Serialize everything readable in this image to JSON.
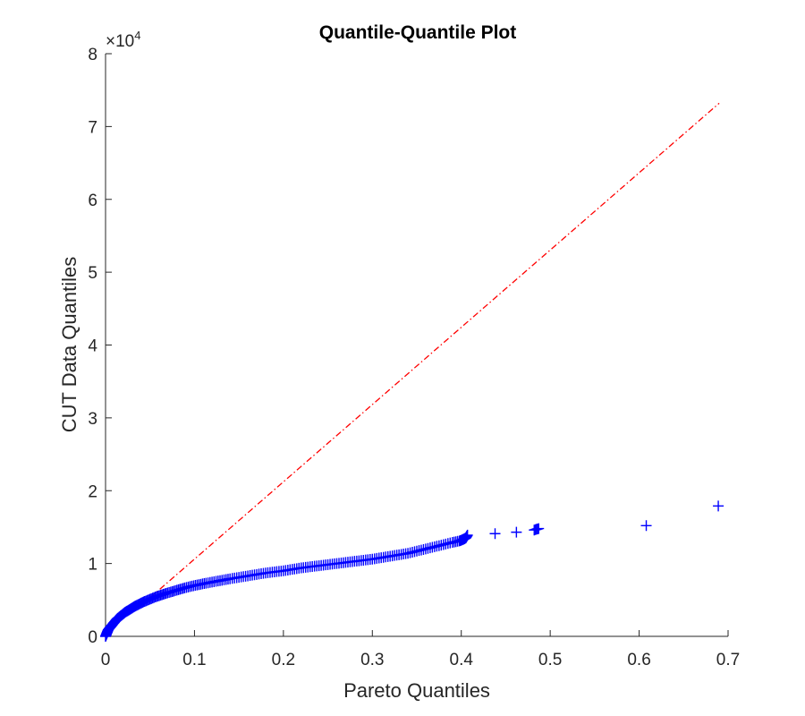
{
  "chart_data": {
    "type": "scatter",
    "title": "Quantile-Quantile Plot",
    "xlabel": "Pareto Quantiles",
    "ylabel": "CUT Data Quantiles",
    "xlim": [
      0,
      0.7
    ],
    "ylim": [
      0,
      80000
    ],
    "xticks": [
      0,
      0.1,
      0.2,
      0.3,
      0.4,
      0.5,
      0.6,
      0.7
    ],
    "xtick_labels": [
      "0",
      "0.1",
      "0.2",
      "0.3",
      "0.4",
      "0.5",
      "0.6",
      "0.7"
    ],
    "yticks": [
      0,
      10000,
      20000,
      30000,
      40000,
      50000,
      60000,
      70000,
      80000
    ],
    "ytick_labels": [
      "0",
      "1",
      "2",
      "3",
      "4",
      "5",
      "6",
      "7",
      "8"
    ],
    "y_exponent_label": "×10",
    "y_exponent_power": "4",
    "grid": false,
    "series": [
      {
        "marker": "+",
        "color": "#0000ff",
        "points": [
          [
            0.0,
            0
          ],
          [
            0.001,
            300
          ],
          [
            0.002,
            600
          ],
          [
            0.003,
            900
          ],
          [
            0.005,
            1200
          ],
          [
            0.007,
            1500
          ],
          [
            0.009,
            1800
          ],
          [
            0.011,
            2100
          ],
          [
            0.013,
            2400
          ],
          [
            0.016,
            2700
          ],
          [
            0.019,
            3000
          ],
          [
            0.022,
            3300
          ],
          [
            0.026,
            3600
          ],
          [
            0.03,
            3900
          ],
          [
            0.034,
            4200
          ],
          [
            0.039,
            4500
          ],
          [
            0.044,
            4800
          ],
          [
            0.05,
            5100
          ],
          [
            0.056,
            5400
          ],
          [
            0.062,
            5650
          ],
          [
            0.068,
            5900
          ],
          [
            0.075,
            6150
          ],
          [
            0.082,
            6400
          ],
          [
            0.089,
            6650
          ],
          [
            0.097,
            6900
          ],
          [
            0.105,
            7100
          ],
          [
            0.113,
            7300
          ],
          [
            0.122,
            7500
          ],
          [
            0.131,
            7700
          ],
          [
            0.14,
            7900
          ],
          [
            0.15,
            8100
          ],
          [
            0.16,
            8300
          ],
          [
            0.17,
            8500
          ],
          [
            0.18,
            8700
          ],
          [
            0.19,
            8850
          ],
          [
            0.2,
            9000
          ],
          [
            0.21,
            9200
          ],
          [
            0.22,
            9400
          ],
          [
            0.23,
            9550
          ],
          [
            0.24,
            9700
          ],
          [
            0.25,
            9850
          ],
          [
            0.26,
            10000
          ],
          [
            0.27,
            10150
          ],
          [
            0.28,
            10300
          ],
          [
            0.29,
            10450
          ],
          [
            0.3,
            10600
          ],
          [
            0.31,
            10800
          ],
          [
            0.32,
            11000
          ],
          [
            0.33,
            11200
          ],
          [
            0.34,
            11400
          ],
          [
            0.35,
            11700
          ],
          [
            0.36,
            12000
          ],
          [
            0.37,
            12300
          ],
          [
            0.38,
            12600
          ],
          [
            0.39,
            12900
          ],
          [
            0.398,
            13100
          ],
          [
            0.402,
            13300
          ],
          [
            0.405,
            13500
          ],
          [
            0.407,
            13900
          ],
          [
            0.438,
            14100
          ],
          [
            0.462,
            14300
          ],
          [
            0.482,
            14600
          ],
          [
            0.487,
            14800
          ],
          [
            0.608,
            15200
          ],
          [
            0.689,
            17900
          ]
        ]
      },
      {
        "style": "dash-dot",
        "color": "#ff0000",
        "points": [
          [
            0.05,
            5300
          ],
          [
            0.69,
            73200
          ]
        ]
      }
    ]
  }
}
